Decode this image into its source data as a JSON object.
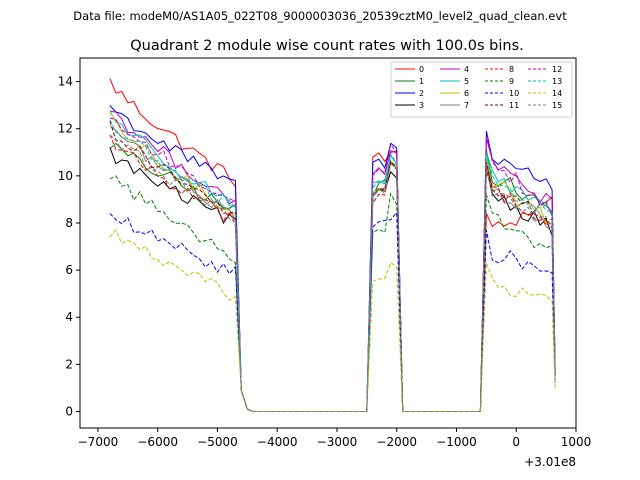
{
  "chart_data": {
    "type": "line",
    "suptitle": "Data file: modeM0/AS1A05_022T08_9000003036_20539cztM0_level2_quad_clean.evt",
    "title": "Quadrant 2 module wise count rates with 100.0s bins.",
    "xlabel": "",
    "ylabel": "",
    "xlim": [
      -7300,
      1000
    ],
    "ylim": [
      -0.7,
      15
    ],
    "x_offset_label": "+3.01e8",
    "x_ticks": [
      -7000,
      -6000,
      -5000,
      -4000,
      -3000,
      -2000,
      -1000,
      0,
      1000
    ],
    "x_tick_labels": [
      "−7000",
      "−6000",
      "−5000",
      "−4000",
      "−3000",
      "−2000",
      "−1000",
      "0",
      "1000"
    ],
    "y_ticks": [
      0,
      2,
      4,
      6,
      8,
      10,
      12,
      14
    ],
    "y_tick_labels": [
      "0",
      "2",
      "4",
      "6",
      "8",
      "10",
      "12",
      "14"
    ],
    "grid": false,
    "legend_position": "top-right",
    "segments": [
      {
        "start": -6800,
        "bins": 22,
        "end_value": 0.9,
        "then": [
          0.1,
          0.0
        ]
      },
      {
        "start": -2500,
        "bins": 6
      },
      {
        "start": -500,
        "bins": 12
      }
    ],
    "series": [
      {
        "name": "0",
        "color": "#ff0000",
        "dashed": false,
        "levels": [
          14.0,
          9.8,
          10.8,
          10.9,
          10.5,
          11.0,
          7.5,
          9.0
        ]
      },
      {
        "name": "1",
        "color": "#008000",
        "dashed": false,
        "levels": [
          11.4,
          8.5,
          9.2,
          9.6,
          9.8,
          10.7,
          10.2,
          8.5
        ]
      },
      {
        "name": "2",
        "color": "#0000ff",
        "dashed": false,
        "levels": [
          13.0,
          9.6,
          10.7,
          10.6,
          10.4,
          11.3,
          11.0,
          9.6
        ]
      },
      {
        "name": "3",
        "color": "#000000",
        "dashed": false,
        "levels": [
          11.0,
          8.0,
          9.0,
          9.3,
          9.2,
          10.2,
          9.4,
          7.8
        ]
      },
      {
        "name": "4",
        "color": "#bf00bf",
        "dashed": false,
        "levels": [
          12.9,
          8.9,
          10.0,
          10.2,
          10.0,
          11.2,
          10.7,
          8.8
        ]
      },
      {
        "name": "5",
        "color": "#00bfbf",
        "dashed": false,
        "levels": [
          12.7,
          8.7,
          9.7,
          9.9,
          9.7,
          10.8,
          10.1,
          8.3
        ]
      },
      {
        "name": "6",
        "color": "#bfbf00",
        "dashed": false,
        "levels": [
          12.4,
          8.4,
          9.3,
          9.6,
          9.5,
          10.6,
          9.9,
          8.1
        ]
      },
      {
        "name": "7",
        "color": "#808080",
        "dashed": false,
        "levels": [
          12.2,
          8.3,
          9.2,
          9.5,
          9.4,
          10.7,
          9.6,
          7.9
        ]
      },
      {
        "name": "8",
        "color": "#ff0000",
        "dashed": true,
        "levels": [
          11.6,
          8.1,
          9.0,
          9.3,
          9.2,
          10.5,
          9.6,
          7.9
        ]
      },
      {
        "name": "9",
        "color": "#008000",
        "dashed": true,
        "levels": [
          10.1,
          6.6,
          7.5,
          7.8,
          7.7,
          9.3,
          8.3,
          6.9
        ]
      },
      {
        "name": "10",
        "color": "#0000ff",
        "dashed": true,
        "levels": [
          8.4,
          5.9,
          7.8,
          8.1,
          8.0,
          8.0,
          6.8,
          5.9
        ]
      },
      {
        "name": "11",
        "color": "#800000",
        "dashed": true,
        "levels": [
          12.1,
          8.3,
          9.2,
          9.5,
          9.4,
          10.6,
          9.7,
          8.0
        ]
      },
      {
        "name": "12",
        "color": "#bf00bf",
        "dashed": true,
        "levels": [
          12.6,
          8.8,
          10.1,
          10.3,
          10.2,
          11.4,
          10.8,
          8.6
        ]
      },
      {
        "name": "13",
        "color": "#00bfbf",
        "dashed": true,
        "levels": [
          12.3,
          8.6,
          9.6,
          9.8,
          9.6,
          10.8,
          10.0,
          8.2
        ]
      },
      {
        "name": "14",
        "color": "#bfbf00",
        "dashed": true,
        "levels": [
          7.7,
          4.9,
          5.4,
          5.6,
          5.6,
          6.3,
          5.4,
          4.6
        ]
      },
      {
        "name": "15",
        "color": "#808080",
        "dashed": true,
        "levels": [
          11.8,
          8.2,
          9.1,
          9.4,
          9.3,
          10.6,
          9.5,
          7.8
        ]
      }
    ]
  }
}
